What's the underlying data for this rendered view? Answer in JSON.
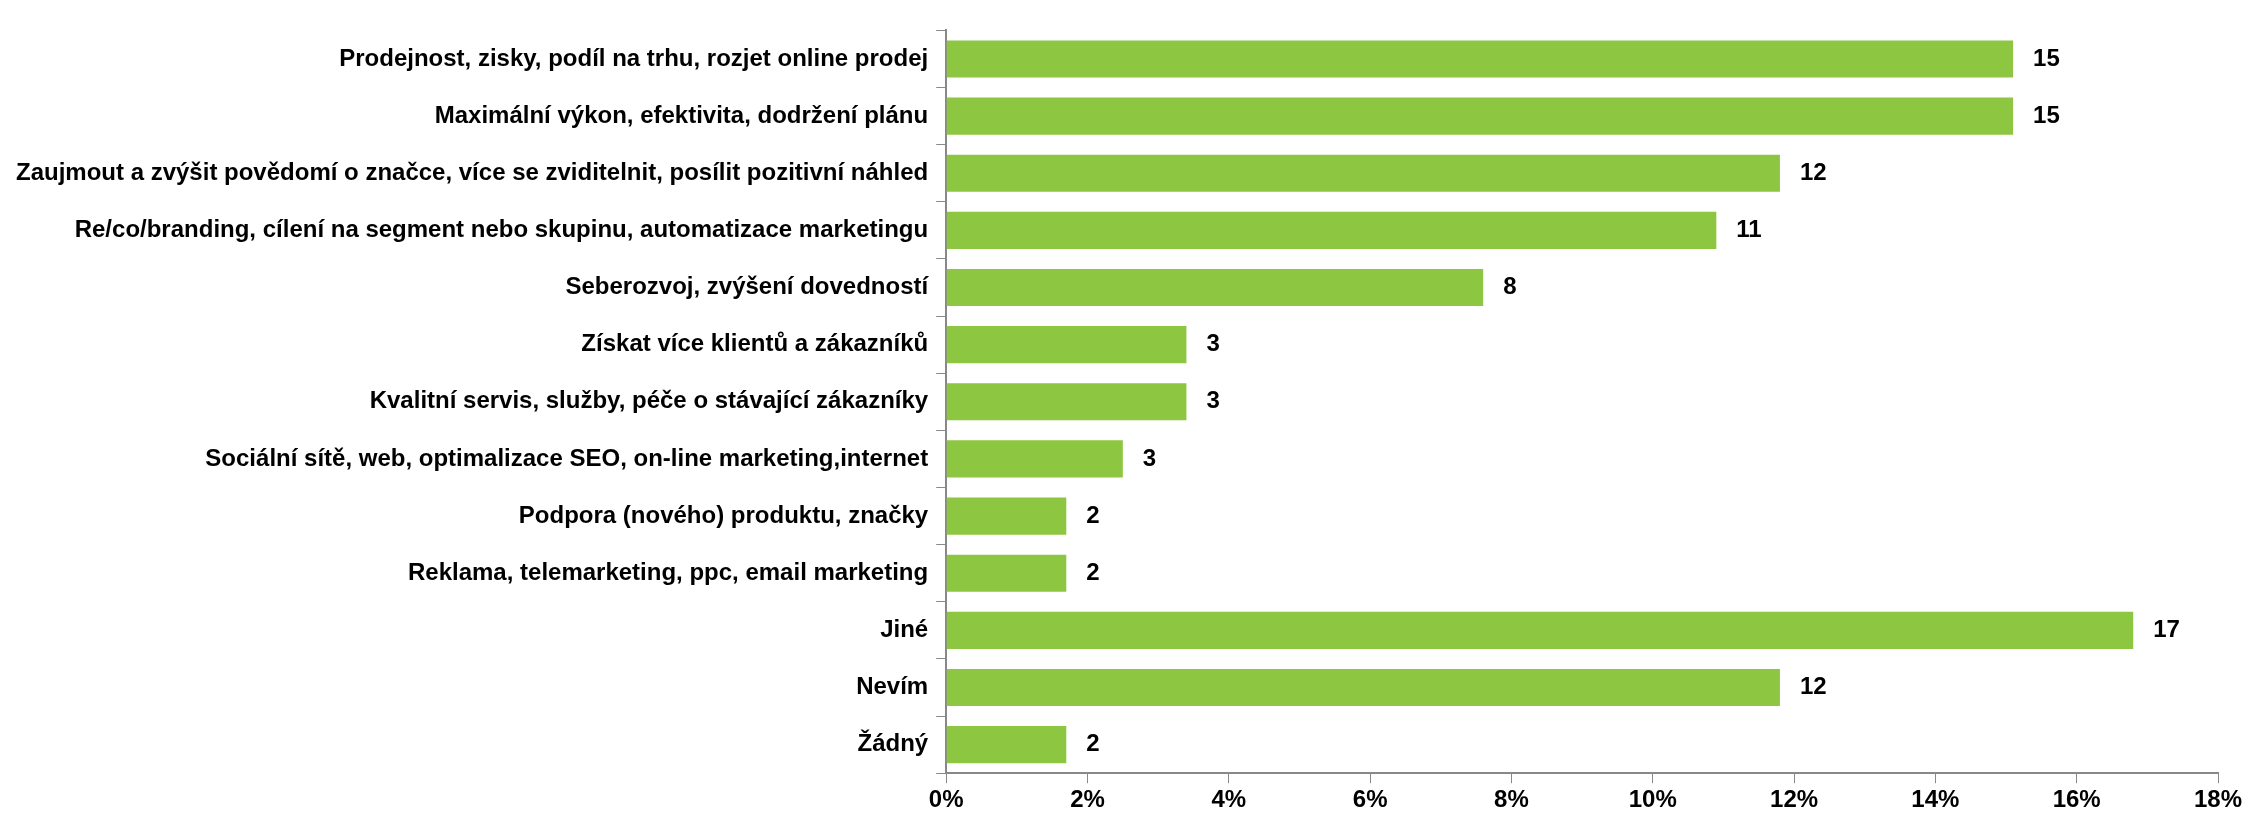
{
  "chart_data": {
    "type": "bar",
    "orientation": "horizontal",
    "categories": [
      "Prodejnost, zisky, podíl na trhu, rozjet online prodej",
      "Maximální výkon, efektivita, dodržení plánu",
      "Zaujmout a zvýšit povědomí o značce, více se zviditelnit, posílit pozitivní náhled",
      "Re/co/branding, cílení na segment nebo skupinu, automatizace marketingu",
      "Seberozvoj, zvýšení dovedností",
      "Získat více klientů a zákazníků",
      "Kvalitní servis, služby, péče o stávající zákazníky",
      "Sociální sítě, web, optimalizace SEO, on-line marketing,internet",
      "Podpora (nového) produktu, značky",
      "Reklama, telemarketing, ppc, email marketing",
      "Jiné",
      "Nevím",
      "Žádný"
    ],
    "values": [
      15.1,
      15.1,
      11.8,
      10.9,
      7.6,
      3.4,
      3.4,
      2.5,
      1.7,
      1.7,
      16.8,
      11.8,
      1.7
    ],
    "value_labels": [
      "15",
      "15",
      "12",
      "11",
      "8",
      "3",
      "3",
      "3",
      "2",
      "2",
      "17",
      "12",
      "2"
    ],
    "color": "#8dc641",
    "xlim": [
      0,
      18
    ],
    "xticks": [
      {
        "value": 0,
        "label": "0%"
      },
      {
        "value": 2,
        "label": "2%"
      },
      {
        "value": 4,
        "label": "4%"
      },
      {
        "value": 6,
        "label": "6%"
      },
      {
        "value": 8,
        "label": "8%"
      },
      {
        "value": 10,
        "label": "10%"
      },
      {
        "value": 12,
        "label": "12%"
      },
      {
        "value": 14,
        "label": "14%"
      },
      {
        "value": 16,
        "label": "16%"
      },
      {
        "value": 18,
        "label": "18%"
      }
    ],
    "grid": false,
    "legend": false
  }
}
